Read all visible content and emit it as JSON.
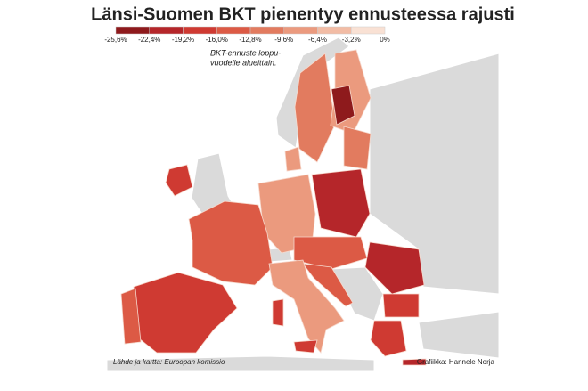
{
  "title": "Länsi-Suomen BKT pienentyy ennusteessa rajusti",
  "legend": {
    "labels": [
      "-25,6%",
      "-22,4%",
      "-19,2%",
      "-16,0%",
      "-12,8%",
      "-9,6%",
      "-6,4%",
      "-3,2%",
      "0%"
    ],
    "colors": [
      "#8e1a1c",
      "#b5262a",
      "#cf3a32",
      "#dc5a45",
      "#e27b5f",
      "#eb9a7e",
      "#f2bca5",
      "#f9e1d4"
    ]
  },
  "note_lines": [
    "BKT-ennuste loppu-",
    "vuodelle alueittain."
  ],
  "source": "Lähde ja kartta: Euroopan komissio",
  "credit": "Grafiikka: Hannele Norja"
}
